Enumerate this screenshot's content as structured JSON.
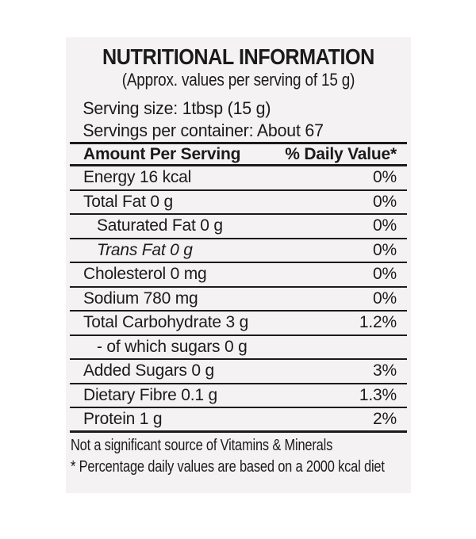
{
  "label": {
    "title": "NUTRITIONAL INFORMATION",
    "subtitle": "(Approx. values per serving of 15 g)",
    "serving_size": "Serving size: 1tbsp (15 g)",
    "servings_per_container": "Servings per container: About 67",
    "table": {
      "header": {
        "amount_column": "Amount Per Serving",
        "daily_value_column": "% Daily Value*"
      },
      "rows": [
        {
          "name": "Energy 16 kcal",
          "dv": "0%"
        },
        {
          "name": "Total Fat 0 g",
          "dv": "0%"
        },
        {
          "name": "Saturated Fat 0 g",
          "dv": "0%",
          "indent": true
        },
        {
          "name": "Trans Fat 0 g",
          "dv": "0%",
          "indent": true,
          "italic": true
        },
        {
          "name": "Cholesterol 0 mg",
          "dv": "0%"
        },
        {
          "name": "Sodium 780 mg",
          "dv": "0%"
        },
        {
          "name": "Total Carbohydrate 3 g",
          "dv": "1.2%"
        },
        {
          "name": "- of which sugars 0 g",
          "dv": "",
          "indent": true
        },
        {
          "name": "Added Sugars 0 g",
          "dv": "3%"
        },
        {
          "name": "Dietary Fibre 0.1 g",
          "dv": "1.3%"
        },
        {
          "name": "Protein 1 g",
          "dv": "2%",
          "last": true
        }
      ]
    },
    "footnotes": [
      "Not a significant source of Vitamins & Minerals",
      "* Percentage daily values are based on a 2000 kcal diet"
    ],
    "colors": {
      "page_bg": "#ffffff",
      "label_bg": "#f4f2f3",
      "text": "#1b1b1b",
      "rule": "#1b1b1b"
    }
  }
}
